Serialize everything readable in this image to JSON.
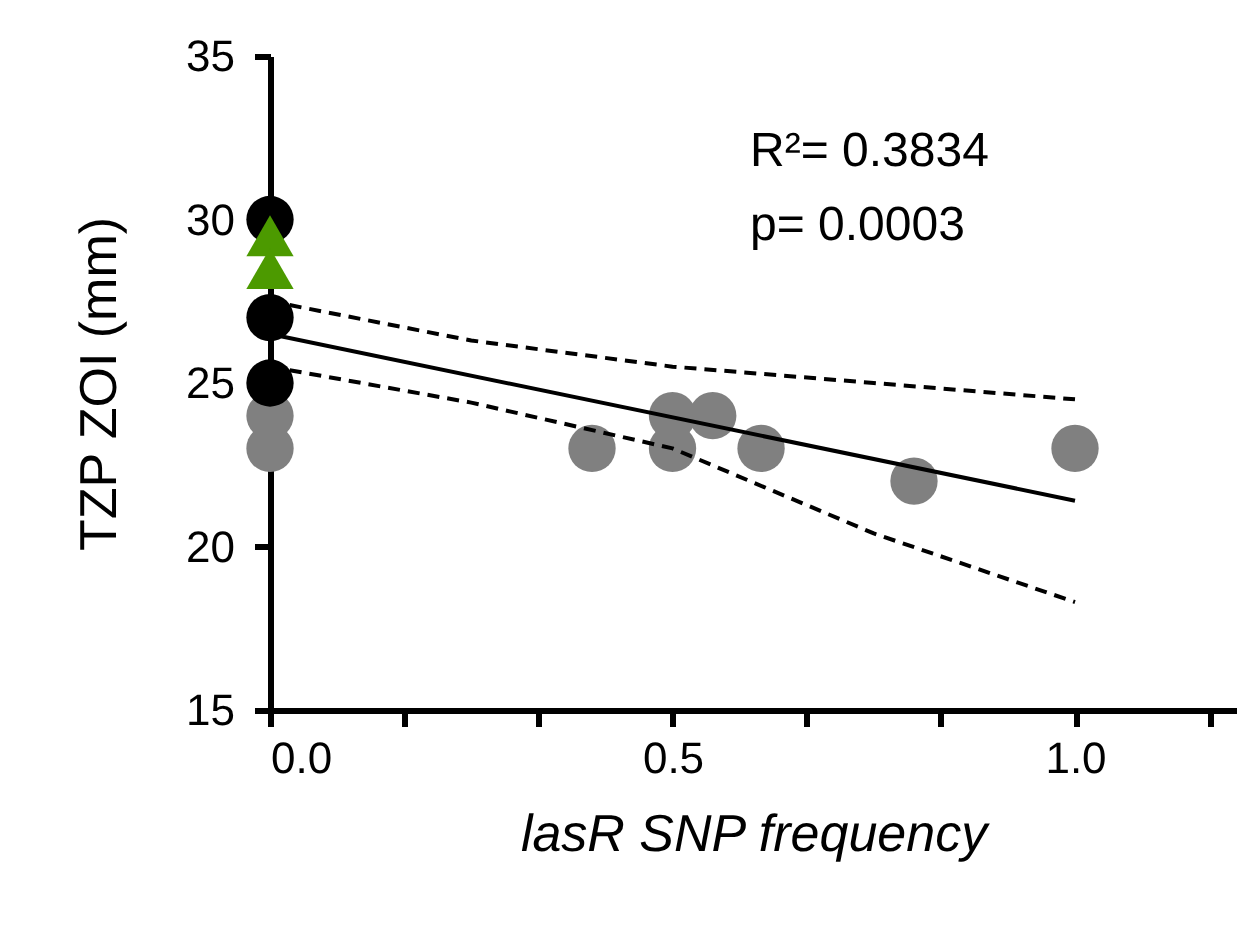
{
  "chart_data": {
    "type": "scatter",
    "xlabel": "lasR SNP frequency",
    "ylabel": "TZP ZOI (mm)",
    "annotations": [
      "R²= 0.3834",
      "p= 0.0003"
    ],
    "xlim": [
      0,
      1.2
    ],
    "xticks": [
      {
        "value": 0,
        "label": "0.0"
      },
      {
        "value": 0.1667,
        "label": null
      },
      {
        "value": 0.3333,
        "label": null
      },
      0.5,
      {
        "value": 0.6667,
        "label": null
      },
      {
        "value": 0.8333,
        "label": null
      },
      {
        "value": 1,
        "label": "1.0"
      },
      {
        "value": 1.1667,
        "label": null
      }
    ],
    "ylim": [
      15,
      35
    ],
    "yticks": [
      15,
      20,
      25,
      30,
      35
    ],
    "grid": false,
    "series": [
      {
        "type": "scatter",
        "marker": "circle",
        "color": "#808080",
        "x": [
          0,
          0,
          0.4,
          0.5,
          0.5,
          0.55,
          0.61,
          0.8,
          1.0
        ],
        "values": [
          23,
          24,
          23,
          24,
          23,
          24,
          23,
          22,
          23
        ]
      },
      {
        "type": "scatter",
        "marker": "circle",
        "color": "#000000",
        "x": [
          0,
          0,
          0
        ],
        "values": [
          30,
          27,
          25
        ]
      },
      {
        "type": "scatter",
        "marker": "triangle",
        "color": "#4c9a00",
        "x": [
          0,
          0
        ],
        "values": [
          29.5,
          28.5
        ]
      },
      {
        "type": "line",
        "marker": "none",
        "line_style": "solid",
        "color": "#000000",
        "x": [
          0,
          1.0
        ],
        "values": [
          26.5,
          21.4
        ]
      },
      {
        "type": "line",
        "marker": "none",
        "line_style": "dashed",
        "color": "#000000",
        "x": [
          0,
          0.25,
          0.5,
          0.75,
          1.0
        ],
        "values": [
          27.5,
          26.3,
          25.5,
          25.0,
          24.5
        ]
      },
      {
        "type": "line",
        "marker": "none",
        "line_style": "dashed",
        "color": "#000000",
        "x": [
          0,
          0.25,
          0.5,
          0.75,
          1.0
        ],
        "values": [
          25.5,
          24.4,
          23.0,
          20.4,
          18.3
        ]
      }
    ]
  }
}
